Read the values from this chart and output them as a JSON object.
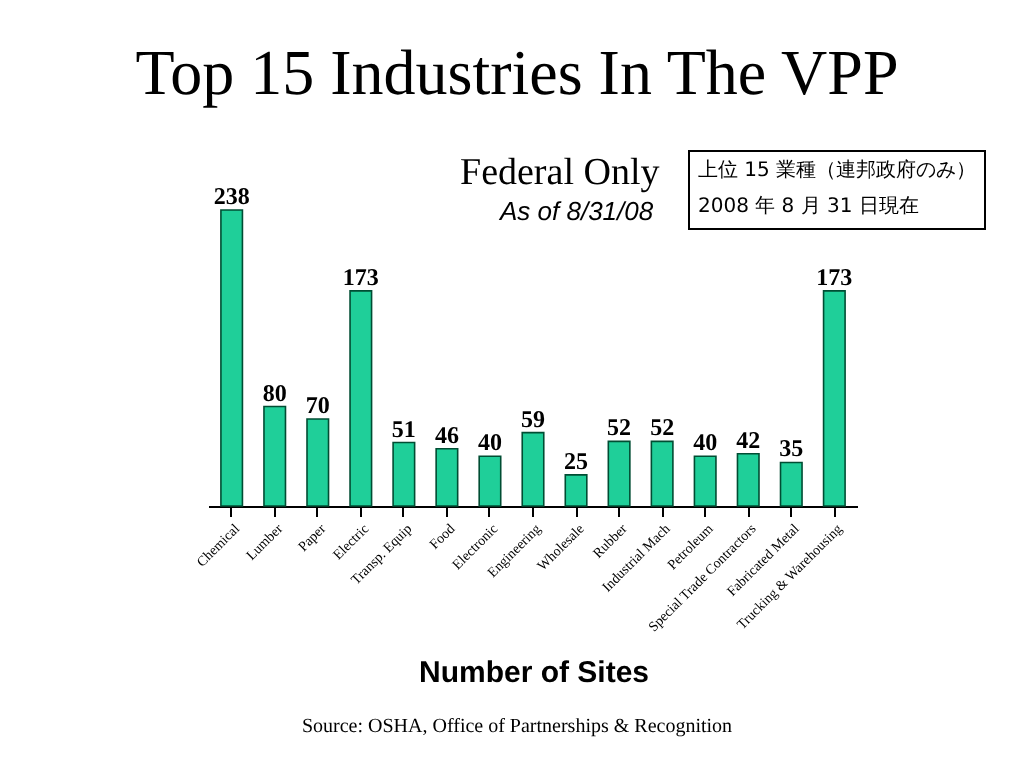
{
  "chart_data": {
    "type": "bar",
    "title": "Top 15 Industries In The VPP",
    "subtitle": "Federal Only",
    "xlabel": "Number of Sites",
    "categories": [
      "Chemical",
      "Lumber",
      "Paper",
      "Electric",
      "Transp. Equip",
      "Food",
      "Electronic",
      "Engineering",
      "Wholesale",
      "Rubber",
      "Industrial Mach",
      "Petroleum",
      "Special Trade Contractors",
      "Fabricated Metal",
      "Trucking & Warehousing"
    ],
    "values": [
      238,
      80,
      70,
      173,
      51,
      46,
      40,
      59,
      25,
      52,
      52,
      40,
      42,
      35,
      173
    ],
    "color": "#1fcf99",
    "data_labels": true,
    "grid": false,
    "annotations": [
      "As of 8/31/08",
      "上位 15 業種（連邦政府のみ）",
      "2008 年 8 月 31 日現在",
      "Source: OSHA, Office of Partnerships & Recognition"
    ]
  }
}
